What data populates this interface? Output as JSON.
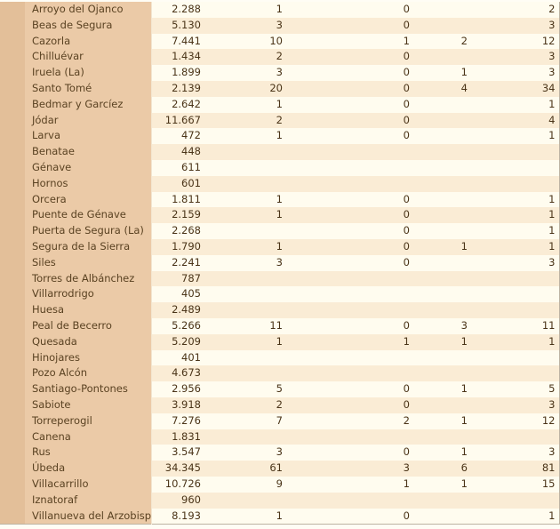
{
  "rows": [
    [
      "Arroyo del Ojanco",
      "2.288",
      "1",
      "0",
      "",
      "2"
    ],
    [
      "Beas de Segura",
      "5.130",
      "3",
      "0",
      "",
      "3"
    ],
    [
      "Cazorla",
      "7.441",
      "10",
      "1",
      "2",
      "12"
    ],
    [
      "Chilluévar",
      "1.434",
      "2",
      "0",
      "",
      "3"
    ],
    [
      "Iruela (La)",
      "1.899",
      "3",
      "0",
      "1",
      "3"
    ],
    [
      "Santo Tomé",
      "2.139",
      "20",
      "0",
      "4",
      "34"
    ],
    [
      "Bedmar y Garcíez",
      "2.642",
      "1",
      "0",
      "",
      "1"
    ],
    [
      "Jódar",
      "11.667",
      "2",
      "0",
      "",
      "4"
    ],
    [
      "Larva",
      "472",
      "1",
      "0",
      "",
      "1"
    ],
    [
      "Benatae",
      "448",
      "",
      "",
      "",
      ""
    ],
    [
      "Génave",
      "611",
      "",
      "",
      "",
      ""
    ],
    [
      "Hornos",
      "601",
      "",
      "",
      "",
      ""
    ],
    [
      "Orcera",
      "1.811",
      "1",
      "0",
      "",
      "1"
    ],
    [
      "Puente de Génave",
      "2.159",
      "1",
      "0",
      "",
      "1"
    ],
    [
      "Puerta de Segura (La)",
      "2.268",
      "",
      "0",
      "",
      "1"
    ],
    [
      "Segura de la Sierra",
      "1.790",
      "1",
      "0",
      "1",
      "1"
    ],
    [
      "Siles",
      "2.241",
      "3",
      "0",
      "",
      "3"
    ],
    [
      "Torres de Albánchez",
      "787",
      "",
      "",
      "",
      ""
    ],
    [
      "Villarrodrigo",
      "405",
      "",
      "",
      "",
      ""
    ],
    [
      "Huesa",
      "2.489",
      "",
      "",
      "",
      ""
    ],
    [
      "Peal de Becerro",
      "5.266",
      "11",
      "0",
      "3",
      "11"
    ],
    [
      "Quesada",
      "5.209",
      "1",
      "1",
      "1",
      "1"
    ],
    [
      "Hinojares",
      "401",
      "",
      "",
      "",
      ""
    ],
    [
      "Pozo Alcón",
      "4.673",
      "",
      "",
      "",
      ""
    ],
    [
      "Santiago-Pontones",
      "2.956",
      "5",
      "0",
      "1",
      "5"
    ],
    [
      "Sabiote",
      "3.918",
      "2",
      "0",
      "",
      "3"
    ],
    [
      "Torreperogil",
      "7.276",
      "7",
      "2",
      "1",
      "12"
    ],
    [
      "Canena",
      "1.831",
      "",
      "",
      "",
      ""
    ],
    [
      "Rus",
      "3.547",
      "3",
      "0",
      "1",
      "3"
    ],
    [
      "Úbeda",
      "34.345",
      "61",
      "3",
      "6",
      "81"
    ],
    [
      "Villacarrillo",
      "10.726",
      "9",
      "1",
      "1",
      "15"
    ],
    [
      "Iznatoraf",
      "960",
      "",
      "",
      "",
      ""
    ],
    [
      "Villanueva del Arzobispo",
      "8.193",
      "1",
      "0",
      "",
      "1"
    ]
  ]
}
